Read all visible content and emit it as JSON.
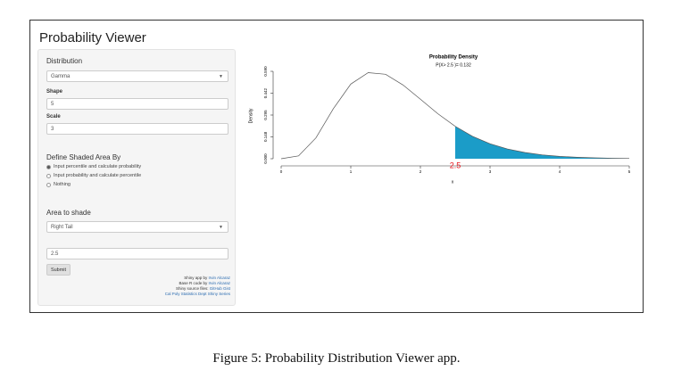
{
  "app": {
    "title": "Probability Viewer"
  },
  "sidebar": {
    "distribution_label": "Distribution",
    "distribution": "Gamma",
    "shape_label": "Shape",
    "shape": "5",
    "scale_label": "Scale",
    "scale": "3",
    "shade_heading": "Define Shaded Area By",
    "options": [
      "Input percentile and calculate probability",
      "Input probability and calculate percentile",
      "Nothing"
    ],
    "selected_option": 0,
    "area_heading": "Area to shade",
    "area": "Right Tail",
    "bound": "2.5",
    "submit": "Submit",
    "credits": [
      {
        "text": "Shiny app by",
        "link": "Irvin Alcaraz"
      },
      {
        "text": "Base R code by",
        "link": "Irvin Alcaraz"
      },
      {
        "text": "Shiny source files:",
        "link": "GitHub Gist"
      },
      {
        "text": "",
        "link": "Cal Poly Statistics Dept Shiny Series"
      }
    ]
  },
  "chart_data": {
    "type": "line",
    "title": "Probability Density",
    "subtitle": "P(X> 2.5 )= 0.132",
    "x_label": "x",
    "y_label": "Density",
    "x": [
      0,
      0.25,
      0.5,
      0.75,
      1,
      1.25,
      1.5,
      1.75,
      2,
      2.25,
      2.5,
      2.75,
      3,
      3.25,
      3.5,
      3.75,
      4,
      4.25,
      4.5,
      4.75,
      5
    ],
    "values": [
      0,
      0.019,
      0.141,
      0.338,
      0.504,
      0.581,
      0.57,
      0.498,
      0.402,
      0.304,
      0.219,
      0.151,
      0.101,
      0.066,
      0.042,
      0.026,
      0.016,
      0.01,
      0.006,
      0.003,
      0.002
    ],
    "color": "#555555",
    "shade_color": "#1b9cc8",
    "threshold": 2.5,
    "threshold_color": "#e8141c",
    "xlim": [
      0,
      5
    ],
    "xticks": [
      0,
      1,
      2,
      3,
      4,
      5
    ],
    "ylim": [
      0,
      0.59
    ],
    "yticks": [
      {
        "value": 0,
        "label": "0.000"
      },
      {
        "value": 0.148,
        "label": "0.148"
      },
      {
        "value": 0.295,
        "label": "0.295"
      },
      {
        "value": 0.442,
        "label": "0.442"
      },
      {
        "value": 0.59,
        "label": "0.590"
      }
    ]
  },
  "caption": "Figure 5: Probability Distribution Viewer app."
}
